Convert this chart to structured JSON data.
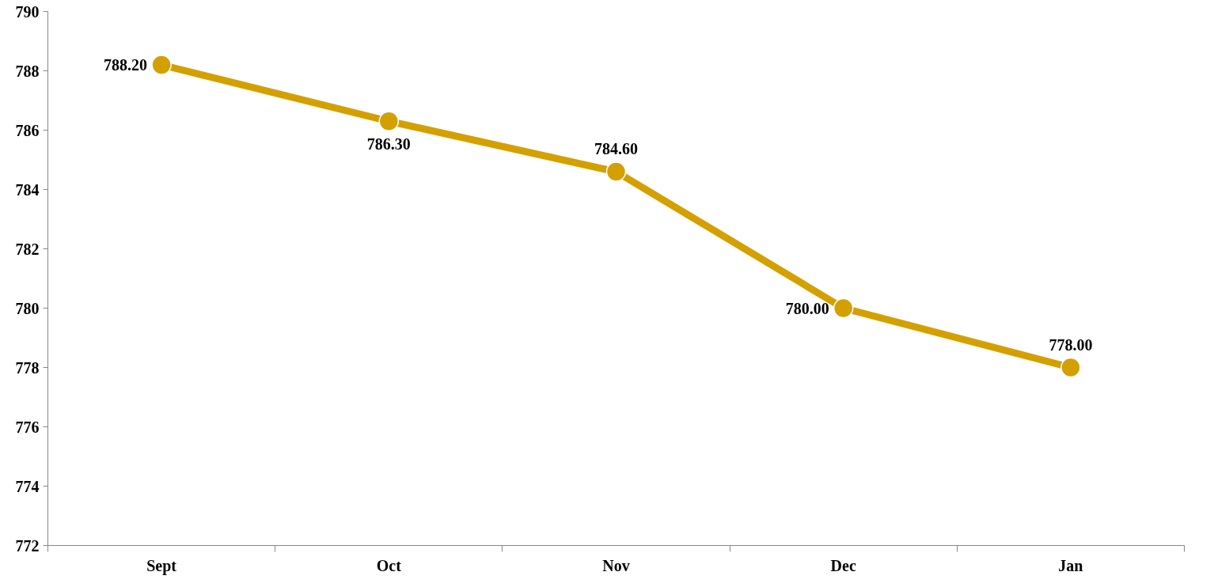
{
  "chart_data": {
    "type": "line",
    "categories": [
      "Sept",
      "Oct",
      "Nov",
      "Dec",
      "Jan"
    ],
    "series": [
      {
        "color": "#d4a000",
        "values": [
          788.2,
          786.3,
          784.6,
          780.0,
          778.0
        ]
      }
    ],
    "ylim": [
      772,
      790
    ],
    "yticks": [
      772,
      774,
      776,
      778,
      780,
      782,
      784,
      786,
      788,
      790
    ],
    "value_labels": [
      "788.20",
      "786.30",
      "784.60",
      "780.00",
      "778.00"
    ],
    "marker": "circle",
    "line_style": "solid"
  }
}
